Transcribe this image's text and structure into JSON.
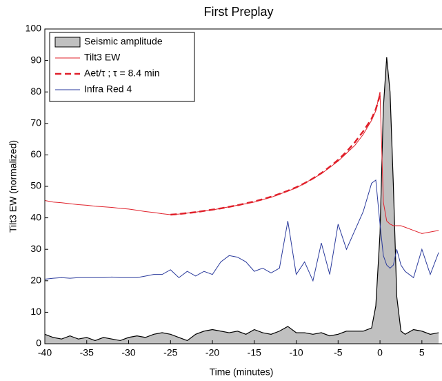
{
  "chart_data": {
    "type": "line",
    "title": "First Preplay",
    "xlabel": "Time (minutes)",
    "ylabel": "Tilt3 EW (normalized)",
    "x": [
      -40,
      -39,
      -38,
      -37,
      -36,
      -35,
      -34,
      -33,
      -32,
      -31,
      -30,
      -29,
      -28,
      -27,
      -26,
      -25,
      -24,
      -23,
      -22,
      -21,
      -20,
      -19,
      -18,
      -17,
      -16,
      -15,
      -14,
      -13,
      -12,
      -11,
      -10,
      -9,
      -8,
      -7,
      -6,
      -5,
      -4,
      -3,
      -2,
      -1,
      -0.5,
      0,
      0.4,
      0.8,
      1.2,
      1.6,
      2,
      2.5,
      3,
      4,
      5,
      6,
      7
    ],
    "series": [
      {
        "name": "Seismic amplitude",
        "style": "area",
        "color": "#c0c0c0",
        "edge_color": "#000000",
        "values": [
          3,
          2,
          1.5,
          2.5,
          1.5,
          2,
          1,
          2,
          1.5,
          1,
          2,
          2.5,
          2,
          3,
          3.5,
          3,
          2,
          1,
          3,
          4,
          4.5,
          4,
          3.5,
          4,
          3,
          4.5,
          3.5,
          3,
          4,
          5.5,
          3.5,
          3.5,
          3,
          3.5,
          2.5,
          3,
          4,
          4,
          4,
          5,
          12,
          35,
          75,
          91,
          80,
          50,
          15,
          4,
          3,
          4.5,
          4,
          3,
          3.5
        ]
      },
      {
        "name": "Tilt3 EW",
        "style": "solid",
        "color": "#e0202a",
        "values": [
          45.5,
          45,
          44.8,
          44.5,
          44.2,
          44,
          43.7,
          43.5,
          43.3,
          43,
          42.8,
          42.4,
          42,
          41.7,
          41.3,
          41,
          41.2,
          41.5,
          41.8,
          42.2,
          42.5,
          43,
          43.5,
          44,
          44.5,
          45,
          45.8,
          46.5,
          47.5,
          48.5,
          49.5,
          51,
          52.5,
          54,
          56,
          58,
          60.5,
          63,
          66.5,
          71,
          74,
          80,
          45,
          39,
          38,
          37.5,
          37.5,
          37.5,
          37,
          36,
          35,
          35.5,
          36
        ]
      },
      {
        "name": "Aet/τ ; τ = 8.4 min",
        "style": "dashed",
        "color": "#e0202a",
        "values": [
          null,
          null,
          null,
          null,
          null,
          null,
          null,
          null,
          null,
          null,
          null,
          null,
          null,
          null,
          null,
          41,
          41.2,
          41.5,
          41.8,
          42.2,
          42.6,
          43,
          43.5,
          44,
          44.6,
          45.2,
          45.9,
          46.7,
          47.6,
          48.6,
          49.7,
          51,
          52.5,
          54.2,
          56.2,
          58.4,
          61,
          64,
          67.5,
          71.5,
          74.5,
          79,
          null,
          null,
          null,
          null,
          null,
          null,
          null,
          null,
          null,
          null,
          null
        ]
      },
      {
        "name": "Infra Red 4",
        "style": "solid",
        "color": "#2a3a9c",
        "values": [
          20.5,
          20.8,
          21,
          20.8,
          21,
          21,
          21,
          21,
          21.2,
          21,
          21,
          21,
          21.5,
          22,
          22,
          23.5,
          21,
          23,
          21.5,
          23,
          22,
          26,
          28,
          27.5,
          26,
          23,
          24,
          22.5,
          24,
          39,
          22,
          26,
          20,
          32,
          22,
          38,
          30,
          36,
          42,
          51,
          52,
          38,
          28,
          25,
          24,
          25,
          30,
          25,
          23,
          21,
          30,
          22,
          29
        ]
      }
    ],
    "xlim": [
      -40,
      7.4
    ],
    "xticks": [
      -40,
      -35,
      -30,
      -25,
      -20,
      -15,
      -10,
      -5,
      0,
      5
    ],
    "ylim": [
      0,
      100
    ],
    "yticks": [
      0,
      10,
      20,
      30,
      40,
      50,
      60,
      70,
      80,
      90,
      100
    ],
    "legend": "upper-left"
  }
}
